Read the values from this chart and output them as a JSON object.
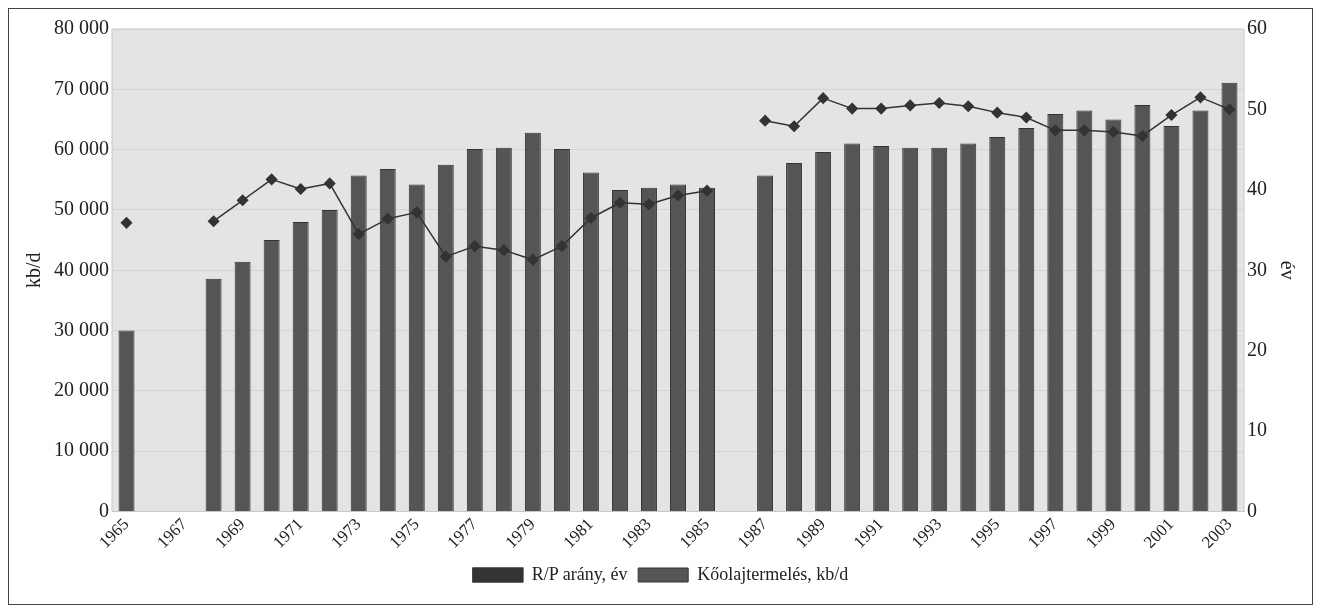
{
  "chart_data": {
    "type": "bar",
    "categories": [
      "1965",
      null,
      "1967",
      null,
      "1969",
      null,
      "1971",
      null,
      "1973",
      null,
      "1975",
      null,
      "1977",
      null,
      "1979",
      null,
      "1981",
      null,
      "1983",
      null,
      "1985",
      null,
      "1987",
      null,
      "1989",
      null,
      "1991",
      null,
      "1993",
      null,
      "1995",
      null,
      "1997",
      null,
      "1999",
      null,
      "2001",
      null,
      "2003"
    ],
    "series": [
      {
        "name": "Kőolajtermelés, kb/d",
        "color": "#555555",
        "values": [
          30000,
          null,
          null,
          38600,
          41400,
          45000,
          48000,
          50000,
          55700,
          56800,
          54200,
          57500,
          60100,
          60300,
          62800,
          60100,
          56200,
          53300,
          53700,
          54200,
          53700,
          null,
          55700,
          57800,
          59600,
          61000,
          60600,
          60300,
          60300,
          61000,
          62100,
          63600,
          65900,
          66500,
          65000,
          67400,
          63900,
          66500,
          71100
        ]
      },
      {
        "name": "R/P arány, év",
        "type": "line",
        "axis": "y2",
        "color": "#333333",
        "values": [
          35.9,
          null,
          null,
          36.1,
          38.7,
          41.3,
          40.1,
          40.8,
          34.5,
          36.4,
          37.2,
          31.7,
          33.0,
          32.5,
          31.3,
          33.0,
          36.5,
          38.4,
          38.2,
          39.3,
          39.9,
          null,
          48.6,
          47.9,
          51.4,
          50.1,
          50.1,
          50.5,
          50.8,
          50.4,
          49.6,
          49.0,
          47.4,
          47.4,
          47.2,
          46.7,
          49.3,
          51.5,
          50.0
        ]
      }
    ],
    "ylabel": "kb/d",
    "y2label": "év",
    "ylim": [
      0,
      80000
    ],
    "yticks": [
      {
        "value": 0,
        "label": "0"
      },
      {
        "value": 10000,
        "label": "10 000"
      },
      {
        "value": 20000,
        "label": "20 000"
      },
      {
        "value": 30000,
        "label": "30 000"
      },
      {
        "value": 40000,
        "label": "40 000"
      },
      {
        "value": 50000,
        "label": "50 000"
      },
      {
        "value": 60000,
        "label": "60 000"
      },
      {
        "value": 70000,
        "label": "70 000"
      },
      {
        "value": 80000,
        "label": "80 000"
      }
    ],
    "y2lim": [
      0,
      60
    ],
    "y2ticks": [
      0,
      10,
      20,
      30,
      40,
      50,
      60
    ],
    "grid": "y",
    "legend": "bottom",
    "marker": "diamond"
  }
}
